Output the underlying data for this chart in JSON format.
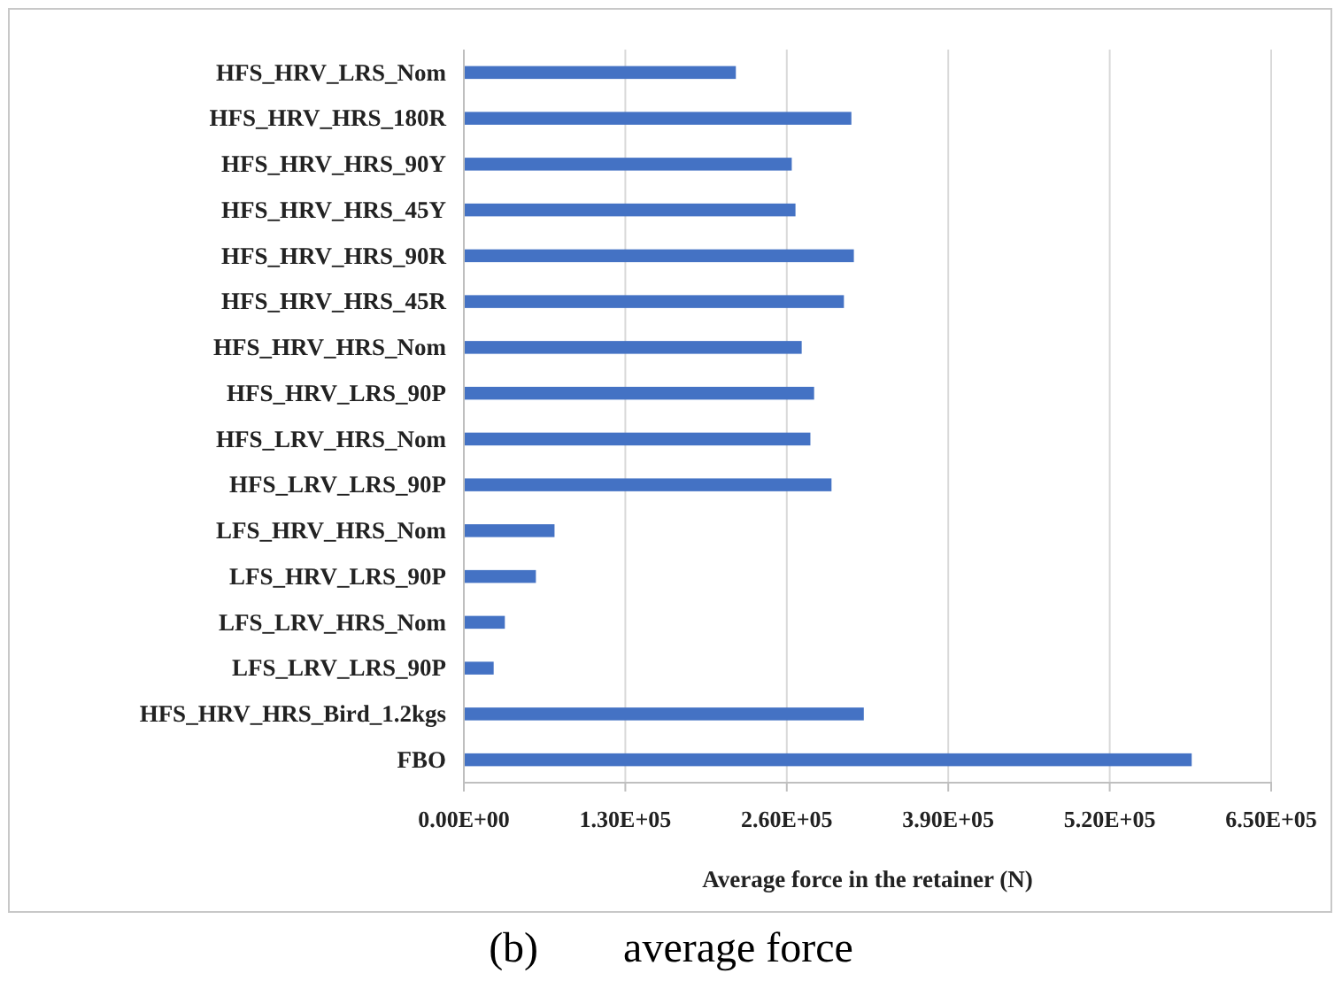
{
  "chart_data": {
    "type": "bar",
    "orientation": "horizontal",
    "xlabel": "Average force in the retainer (N)",
    "categories": [
      "HFS_HRV_LRS_Nom",
      "HFS_HRV_HRS_180R",
      "HFS_HRV_HRS_90Y",
      "HFS_HRV_HRS_45Y",
      "HFS_HRV_HRS_90R",
      "HFS_HRV_HRS_45R",
      "HFS_HRV_HRS_Nom",
      "HFS_HRV_LRS_90P",
      "HFS_LRV_HRS_Nom",
      "HFS_LRV_LRS_90P",
      "LFS_HRV_HRS_Nom",
      "LFS_HRV_LRS_90P",
      "LFS_LRV_HRS_Nom",
      "LFS_LRV_LRS_90P",
      "HFS_HRV_HRS_Bird_1.2kgs",
      "FBO"
    ],
    "values": [
      219000,
      312000,
      264000,
      267000,
      314000,
      306000,
      272000,
      282000,
      279000,
      296000,
      73000,
      58000,
      33000,
      24000,
      322000,
      586000
    ],
    "color": "#4472c4",
    "xlim": [
      0,
      650000
    ],
    "xticks": [
      {
        "value": 0,
        "label": "0.00E+00"
      },
      {
        "value": 130000,
        "label": "1.30E+05"
      },
      {
        "value": 260000,
        "label": "2.60E+05"
      },
      {
        "value": 390000,
        "label": "3.90E+05"
      },
      {
        "value": 520000,
        "label": "5.20E+05"
      },
      {
        "value": 650000,
        "label": "6.50E+05"
      }
    ],
    "grid": "x",
    "annotations": [
      "(b)        average force"
    ]
  }
}
